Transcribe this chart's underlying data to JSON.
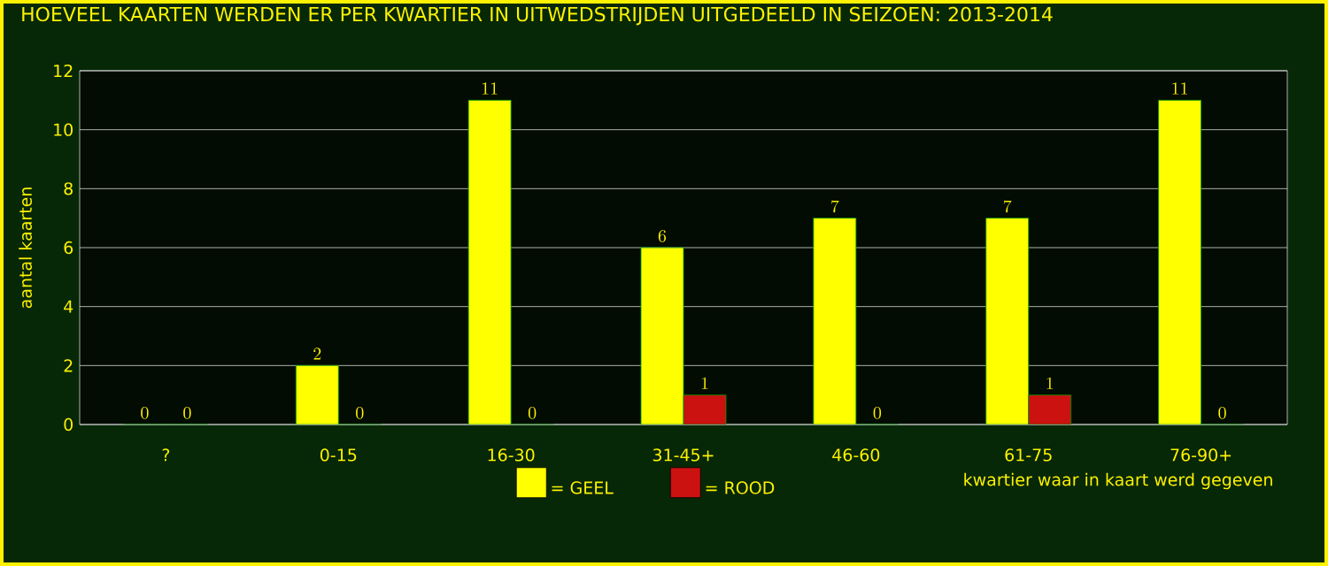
{
  "chart_data": {
    "type": "bar",
    "title": "HOEVEEL KAARTEN WERDEN ER PER KWARTIER IN UITWEDSTRIJDEN UITGEDEELD IN SEIZOEN: 2013-2014",
    "xlabel": "kwartier waar in kaart werd gegeven",
    "ylabel": "aantal kaarten",
    "categories": [
      "?",
      "0-15",
      "16-30",
      "31-45+",
      "46-60",
      "61-75",
      "76-90+"
    ],
    "series": [
      {
        "name": "= GEEL",
        "color": "#ffff00",
        "values": [
          0,
          2,
          11,
          6,
          7,
          7,
          11
        ]
      },
      {
        "name": "= ROOD",
        "color": "#cc1111",
        "values": [
          0,
          0,
          0,
          1,
          0,
          1,
          0
        ]
      }
    ],
    "ylim": [
      0,
      12
    ],
    "yticks": [
      0,
      2,
      4,
      6,
      8,
      10,
      12
    ],
    "grid": "y",
    "legend": "bottom",
    "data_labels": true
  }
}
